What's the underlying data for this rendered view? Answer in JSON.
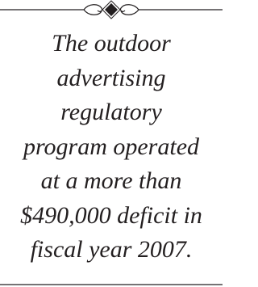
{
  "quote": {
    "lines": [
      "The outdoor",
      "advertising",
      "regulatory",
      "program operated",
      "at a more than",
      "$490,000 deficit in",
      "fiscal year 2007."
    ]
  }
}
